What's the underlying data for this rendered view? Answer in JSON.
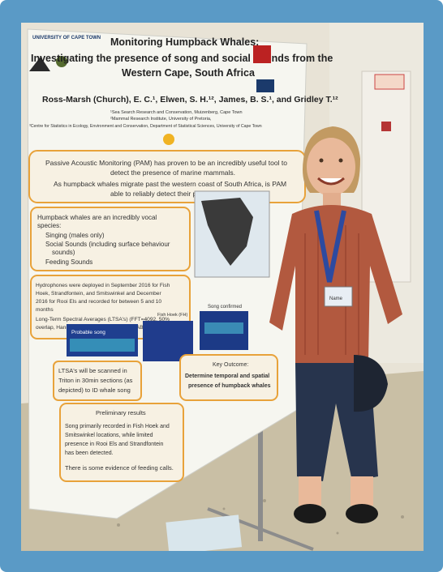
{
  "poster": {
    "university": "UNIVERSITY OF CAPE TOWN",
    "title_line1": "Monitoring Humpback Whales:",
    "title_line2": "Investigating the presence of song and social sounds from the",
    "title_line3": "Western Cape, South Africa",
    "authors": "Ross-Marsh (Church), E. C.¹, Elwen, S. H.¹², James, B. S.¹, and Gridley T.¹²",
    "affil1": "¹Sea Search Research and Conservation, Muizenberg, Cape Town",
    "affil2": "²Mammal Research Institute, University of Pretoria,",
    "affil3": "³Centre for Statistics in Ecology, Environment and Conservation, Department of Statistical Sciences, University of Cape Town",
    "intro_line1": "Passive Acoustic Monitoring (PAM) has proven to be an incredibly useful tool to",
    "intro_line2": "detect the presence of marine mammals.",
    "intro_line3": "As humpback whales migrate past the western coast of South Africa, is PAM",
    "intro_line4": "able to reliably detect their presence?",
    "vocal_heading1": "Humpback whales are an incredibly vocal",
    "vocal_heading2": "species:",
    "vocal_item1": "Singing (males only)",
    "vocal_item2": "Social Sounds (including surface behaviour",
    "vocal_item2b": "sounds)",
    "vocal_item3": "Feeding Sounds",
    "method1": "Hydrophones were deployed in September 2016 for Fish",
    "method2": "Hoek, Strandfontein, and Smitswinkel and December",
    "method3": "2016 for Rooi Els and recorded for between 5 and 10",
    "method4": "months",
    "method5": "Long-Term Spectral Averages (LTSA's) (FFT=4092, 50%",
    "method6": "overlap, Hanning Window) in Triton (MATLAB)",
    "spec_label1": "Probable song",
    "spec_label2": "Fish Hoek (FH)",
    "spec_label3": "Song confirmed",
    "ltsa1": "LTSA's will be scanned in",
    "ltsa2": "Triton in 30min sections (as",
    "ltsa3": "depicted) to ID whale song",
    "outcome1": "Key Outcome:",
    "outcome2": "Determine temporal and spatial",
    "outcome3": "presence of humpback whales",
    "prelim": "Preliminary results",
    "result1": "Song primarily recorded in Fish Hoek and",
    "result2": "Smitswinkel locations, while limited",
    "result3": "presence in Rooi Els and Strandfontein",
    "result4": "has been detected.",
    "result5": "There is some evidence of feeding calls."
  },
  "badge": {
    "text1": "LANYARD",
    "name_tag": "Name"
  },
  "colors": {
    "frame": "#5a9ac6",
    "poster_bg": "#f6f6f0",
    "box_border": "#e8a23a",
    "sweater": "#b2593f",
    "lanyard": "#2c4aa0",
    "jeans": "#27344d"
  }
}
